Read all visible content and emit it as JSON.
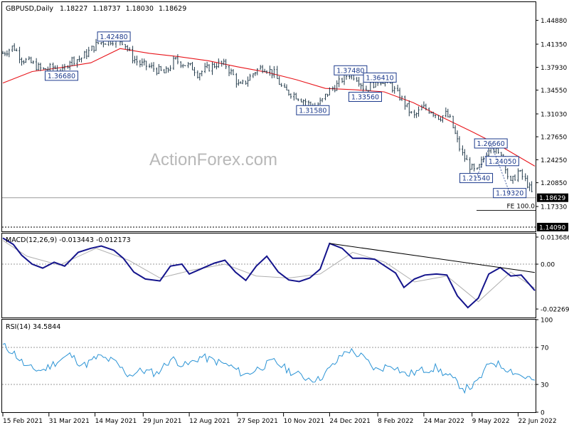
{
  "chart_data": [
    {
      "type": "candlestick",
      "panel": "price",
      "header": {
        "symbol": "GBPUSD,Daily",
        "open": "1.18227",
        "high": "1.18737",
        "low": "1.18030",
        "close": "1.18629"
      },
      "watermark": "ActionForex.com",
      "y_ticks": [
        1.4488,
        1.4135,
        1.3793,
        1.3455,
        1.3103,
        1.2765,
        1.2425,
        1.2085,
        1.1733
      ],
      "y_tick_labels": [
        "1.44880",
        "1.41350",
        "1.37930",
        "1.34550",
        "1.31030",
        "1.27650",
        "1.24250",
        "1.20850",
        "1.17330"
      ],
      "ylim": [
        1.1365,
        1.4757
      ],
      "current_price": {
        "value": 1.18629,
        "label": "1.18629"
      },
      "bottom_price": {
        "value": 1.1409,
        "label": "1.14090"
      },
      "fe_label": "FE 100.0",
      "fe_level": 1.1675,
      "annotations": [
        {
          "label": "1.42480",
          "value": 1.4248,
          "date": "2021-06-01"
        },
        {
          "label": "1.36680",
          "value": 1.3668,
          "date": "2021-04-12"
        },
        {
          "label": "1.37480",
          "value": 1.3748,
          "date": "2022-01-13"
        },
        {
          "label": "1.36410",
          "value": 1.3641,
          "date": "2022-02-10"
        },
        {
          "label": "1.33560",
          "value": 1.3356,
          "date": "2022-01-27"
        },
        {
          "label": "1.31580",
          "value": 1.3158,
          "date": "2021-12-08"
        },
        {
          "label": "1.26660",
          "value": 1.2666,
          "date": "2022-05-27"
        },
        {
          "label": "1.24050",
          "value": 1.2405,
          "date": "2022-06-07"
        },
        {
          "label": "1.21540",
          "value": 1.2154,
          "date": "2022-05-13"
        },
        {
          "label": "1.19320",
          "value": 1.1932,
          "date": "2022-06-14"
        }
      ],
      "series": [
        {
          "name": "GBPUSD",
          "kind": "ohlc-close",
          "x": [
            "2021-02-15",
            "2021-02-25",
            "2021-03-05",
            "2021-03-15",
            "2021-03-25",
            "2021-04-05",
            "2021-04-12",
            "2021-04-20",
            "2021-04-30",
            "2021-05-10",
            "2021-05-17",
            "2021-05-25",
            "2021-06-01",
            "2021-06-10",
            "2021-06-18",
            "2021-06-25",
            "2021-07-05",
            "2021-07-13",
            "2021-07-20",
            "2021-07-29",
            "2021-08-06",
            "2021-08-16",
            "2021-08-20",
            "2021-08-30",
            "2021-09-08",
            "2021-09-16",
            "2021-09-24",
            "2021-09-29",
            "2021-10-06",
            "2021-10-15",
            "2021-10-22",
            "2021-11-01",
            "2021-11-10",
            "2021-11-19",
            "2021-11-30",
            "2021-12-08",
            "2021-12-16",
            "2021-12-24",
            "2021-12-31",
            "2022-01-07",
            "2022-01-13",
            "2022-01-20",
            "2022-01-27",
            "2022-02-03",
            "2022-02-10",
            "2022-02-17",
            "2022-02-24",
            "2022-03-04",
            "2022-03-14",
            "2022-03-23",
            "2022-03-31",
            "2022-04-08",
            "2022-04-14",
            "2022-04-19",
            "2022-04-28",
            "2022-05-06",
            "2022-05-13",
            "2022-05-20",
            "2022-05-27",
            "2022-06-03",
            "2022-06-07",
            "2022-06-14",
            "2022-06-22",
            "2022-06-30",
            "2022-07-06",
            "2022-07-08"
          ],
          "values": [
            1.4,
            1.41,
            1.392,
            1.385,
            1.375,
            1.38,
            1.37,
            1.39,
            1.392,
            1.405,
            1.415,
            1.418,
            1.42,
            1.418,
            1.395,
            1.385,
            1.38,
            1.375,
            1.37,
            1.39,
            1.385,
            1.378,
            1.37,
            1.378,
            1.385,
            1.382,
            1.365,
            1.35,
            1.36,
            1.375,
            1.38,
            1.37,
            1.345,
            1.34,
            1.33,
            1.32,
            1.328,
            1.345,
            1.353,
            1.365,
            1.37,
            1.363,
            1.345,
            1.355,
            1.36,
            1.36,
            1.345,
            1.33,
            1.305,
            1.32,
            1.315,
            1.305,
            1.31,
            1.3,
            1.255,
            1.235,
            1.222,
            1.245,
            1.266,
            1.25,
            1.255,
            1.205,
            1.225,
            1.21,
            1.19,
            1.186
          ]
        },
        {
          "name": "MA",
          "kind": "moving-average",
          "x": [
            "2021-02-15",
            "2021-03-15",
            "2021-04-12",
            "2021-05-10",
            "2021-06-07",
            "2021-07-05",
            "2021-08-02",
            "2021-08-30",
            "2021-09-27",
            "2021-10-25",
            "2021-11-22",
            "2021-12-20",
            "2022-01-17",
            "2022-02-14",
            "2022-03-14",
            "2022-04-11",
            "2022-05-09",
            "2022-06-06",
            "2022-07-08"
          ],
          "values": [
            1.356,
            1.373,
            1.379,
            1.386,
            1.407,
            1.4,
            1.395,
            1.389,
            1.38,
            1.372,
            1.361,
            1.348,
            1.346,
            1.343,
            1.327,
            1.305,
            1.284,
            1.262,
            1.233
          ]
        }
      ],
      "x_tick_labels": [
        "15 Feb 2021",
        "31 Mar 2021",
        "14 May 2021",
        "29 Jun 2021",
        "12 Aug 2021",
        "27 Sep 2021",
        "10 Nov 2021",
        "24 Dec 2021",
        "8 Feb 2022",
        "24 Mar 2022",
        "9 May 2022",
        "22 Jun 2022"
      ],
      "x_tick_dates": [
        "2021-02-15",
        "2021-03-31",
        "2021-05-14",
        "2021-06-29",
        "2021-08-12",
        "2021-09-27",
        "2021-11-10",
        "2021-12-24",
        "2022-02-08",
        "2022-03-24",
        "2022-05-09",
        "2022-06-22"
      ]
    },
    {
      "type": "line",
      "panel": "macd",
      "title": "MACD(12,26,9) -0.013443 -0.012173",
      "y_tick_labels": [
        "0.013686",
        "0.00",
        "-0.022698"
      ],
      "ylim": [
        -0.027,
        0.0155
      ],
      "trendline": {
        "from": {
          "date": "2021-12-24",
          "value": 0.0105
        },
        "to": {
          "date": "2022-07-08",
          "value": -0.0042
        }
      },
      "series": [
        {
          "name": "MACD",
          "x": [
            "2021-02-15",
            "2021-02-25",
            "2021-03-05",
            "2021-03-15",
            "2021-03-25",
            "2021-04-05",
            "2021-04-15",
            "2021-04-28",
            "2021-05-10",
            "2021-05-20",
            "2021-06-01",
            "2021-06-10",
            "2021-06-20",
            "2021-07-01",
            "2021-07-15",
            "2021-07-25",
            "2021-08-05",
            "2021-08-12",
            "2021-08-25",
            "2021-09-05",
            "2021-09-15",
            "2021-09-25",
            "2021-10-05",
            "2021-10-15",
            "2021-10-25",
            "2021-11-05",
            "2021-11-15",
            "2021-11-25",
            "2021-12-05",
            "2021-12-15",
            "2021-12-24",
            "2022-01-05",
            "2022-01-15",
            "2022-01-25",
            "2022-02-05",
            "2022-02-15",
            "2022-02-25",
            "2022-03-05",
            "2022-03-15",
            "2022-03-25",
            "2022-04-05",
            "2022-04-15",
            "2022-04-25",
            "2022-05-05",
            "2022-05-15",
            "2022-05-25",
            "2022-06-05",
            "2022-06-15",
            "2022-06-25",
            "2022-07-08"
          ],
          "values": [
            0.0132,
            0.01,
            0.0045,
            0.0,
            -0.002,
            0.001,
            -0.001,
            0.006,
            0.008,
            0.0092,
            0.007,
            0.003,
            -0.004,
            -0.0075,
            -0.0085,
            -0.001,
            0.0,
            -0.005,
            -0.002,
            0.0005,
            0.002,
            -0.004,
            -0.0082,
            -0.001,
            0.004,
            -0.004,
            -0.008,
            -0.0088,
            -0.007,
            -0.0025,
            0.0105,
            0.008,
            0.003,
            0.003,
            0.0025,
            -0.001,
            -0.0045,
            -0.0118,
            -0.0075,
            -0.0055,
            -0.005,
            -0.0055,
            -0.016,
            -0.022,
            -0.0172,
            -0.005,
            -0.0017,
            -0.006,
            -0.0055,
            -0.0134
          ]
        },
        {
          "name": "Signal",
          "x": [
            "2021-02-15",
            "2021-03-10",
            "2021-04-10",
            "2021-05-15",
            "2021-06-15",
            "2021-07-15",
            "2021-08-15",
            "2021-09-15",
            "2021-10-15",
            "2021-11-15",
            "2021-12-15",
            "2022-01-15",
            "2022-02-15",
            "2022-03-15",
            "2022-04-15",
            "2022-05-15",
            "2022-06-15",
            "2022-07-08"
          ],
          "values": [
            0.012,
            0.004,
            -0.0005,
            0.008,
            0.002,
            -0.007,
            -0.003,
            0.0,
            -0.006,
            -0.007,
            -0.005,
            0.006,
            0.001,
            -0.009,
            -0.006,
            -0.019,
            -0.004,
            -0.0122
          ]
        }
      ]
    },
    {
      "type": "line",
      "panel": "rsi",
      "title": "RSI(14) 34.5844",
      "y_ticks": [
        100,
        70,
        30,
        0
      ],
      "y_tick_labels": [
        "100",
        "70",
        "30",
        "0"
      ],
      "levels": [
        70,
        30
      ],
      "ylim": [
        0,
        100
      ],
      "series": [
        {
          "name": "RSI",
          "x": [
            "2021-02-15",
            "2021-02-25",
            "2021-03-10",
            "2021-03-25",
            "2021-04-08",
            "2021-04-20",
            "2021-05-03",
            "2021-05-17",
            "2021-06-01",
            "2021-06-15",
            "2021-06-28",
            "2021-07-12",
            "2021-07-26",
            "2021-08-09",
            "2021-08-23",
            "2021-09-06",
            "2021-09-20",
            "2021-10-04",
            "2021-10-18",
            "2021-11-01",
            "2021-11-15",
            "2021-11-29",
            "2021-12-13",
            "2021-12-27",
            "2022-01-10",
            "2022-01-24",
            "2022-02-07",
            "2022-02-21",
            "2022-03-07",
            "2022-03-21",
            "2022-04-04",
            "2022-04-18",
            "2022-05-02",
            "2022-05-13",
            "2022-05-27",
            "2022-06-10",
            "2022-06-24",
            "2022-07-08"
          ],
          "values": [
            72,
            65,
            48,
            45,
            55,
            62,
            50,
            60,
            55,
            40,
            45,
            42,
            58,
            50,
            60,
            55,
            50,
            40,
            48,
            55,
            45,
            38,
            35,
            50,
            68,
            60,
            45,
            52,
            40,
            45,
            48,
            38,
            25,
            30,
            55,
            48,
            40,
            34.5844
          ]
        }
      ]
    }
  ]
}
